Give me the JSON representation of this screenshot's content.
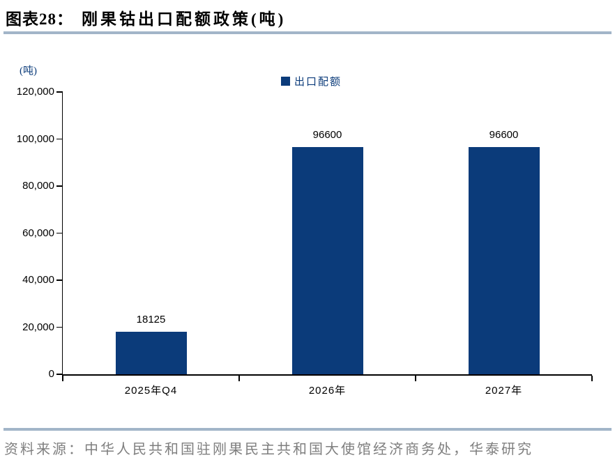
{
  "header": {
    "fig_label": "图表28：",
    "title": "刚果钴出口配额政策(吨)"
  },
  "chart_data": {
    "type": "bar",
    "title": "刚果钴出口配额政策(吨)",
    "unit_label": "(吨)",
    "legend": [
      {
        "label": "出口配额",
        "color": "#0B3B7A"
      }
    ],
    "legend_position": "top-center",
    "categories": [
      "2025年Q4",
      "2026年",
      "2027年"
    ],
    "values": [
      18125,
      96600,
      96600
    ],
    "data_labels": [
      "18125",
      "96600",
      "96600"
    ],
    "ylim": [
      0,
      120000
    ],
    "ytick_interval": 20000,
    "ytick_labels": [
      "0",
      "20,000",
      "40,000",
      "60,000",
      "80,000",
      "100,000",
      "120,000"
    ],
    "grid": false,
    "xlabel": "",
    "ylabel": ""
  },
  "footer": {
    "source": "资料来源：中华人民共和国驻刚果民主共和国大使馆经济商务处，华泰研究"
  },
  "colors": {
    "bar": "#0B3B7A",
    "accent_navy": "#0B3B7A",
    "divider": "#A2B5C8",
    "source_text": "#7F7F7F",
    "axis": "#000000"
  }
}
